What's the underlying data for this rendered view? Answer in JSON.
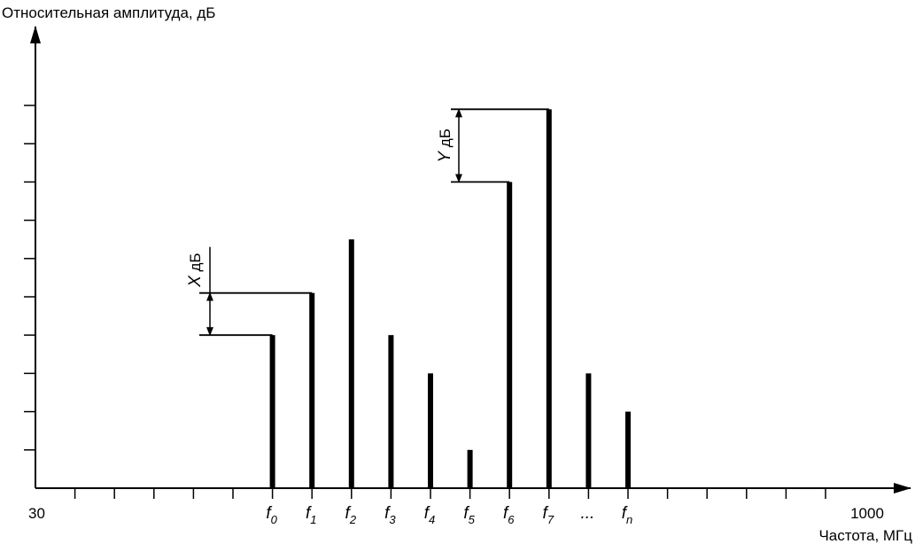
{
  "chart_data": {
    "type": "bar",
    "title": "",
    "ylabel": "Относительная амплитуда, дБ",
    "xlabel": "Частота, МГц",
    "x_tick_labels": [
      "30",
      "1000"
    ],
    "xlim": [
      0,
      20
    ],
    "ylim": [
      0,
      10
    ],
    "grid": false,
    "categories": [
      {
        "main": "f",
        "sub": "0",
        "x": 6
      },
      {
        "main": "f",
        "sub": "1",
        "x": 7
      },
      {
        "main": "f",
        "sub": "2",
        "x": 8
      },
      {
        "main": "f",
        "sub": "3",
        "x": 9
      },
      {
        "main": "f",
        "sub": "4",
        "x": 10
      },
      {
        "main": "f",
        "sub": "5",
        "x": 11
      },
      {
        "main": "f",
        "sub": "6",
        "x": 12
      },
      {
        "main": "f",
        "sub": "7",
        "x": 13
      },
      {
        "main": "...",
        "sub": "",
        "x": 14
      },
      {
        "main": "f",
        "sub": "n",
        "x": 15
      }
    ],
    "values": [
      4,
      5.1,
      6.5,
      4,
      3,
      1,
      8,
      9.9,
      3,
      2
    ],
    "annotations": [
      {
        "italic": "X",
        "text": " дБ",
        "between": [
          0,
          1
        ]
      },
      {
        "italic": "Y",
        "text": " дБ",
        "between": [
          6,
          7
        ]
      }
    ]
  }
}
